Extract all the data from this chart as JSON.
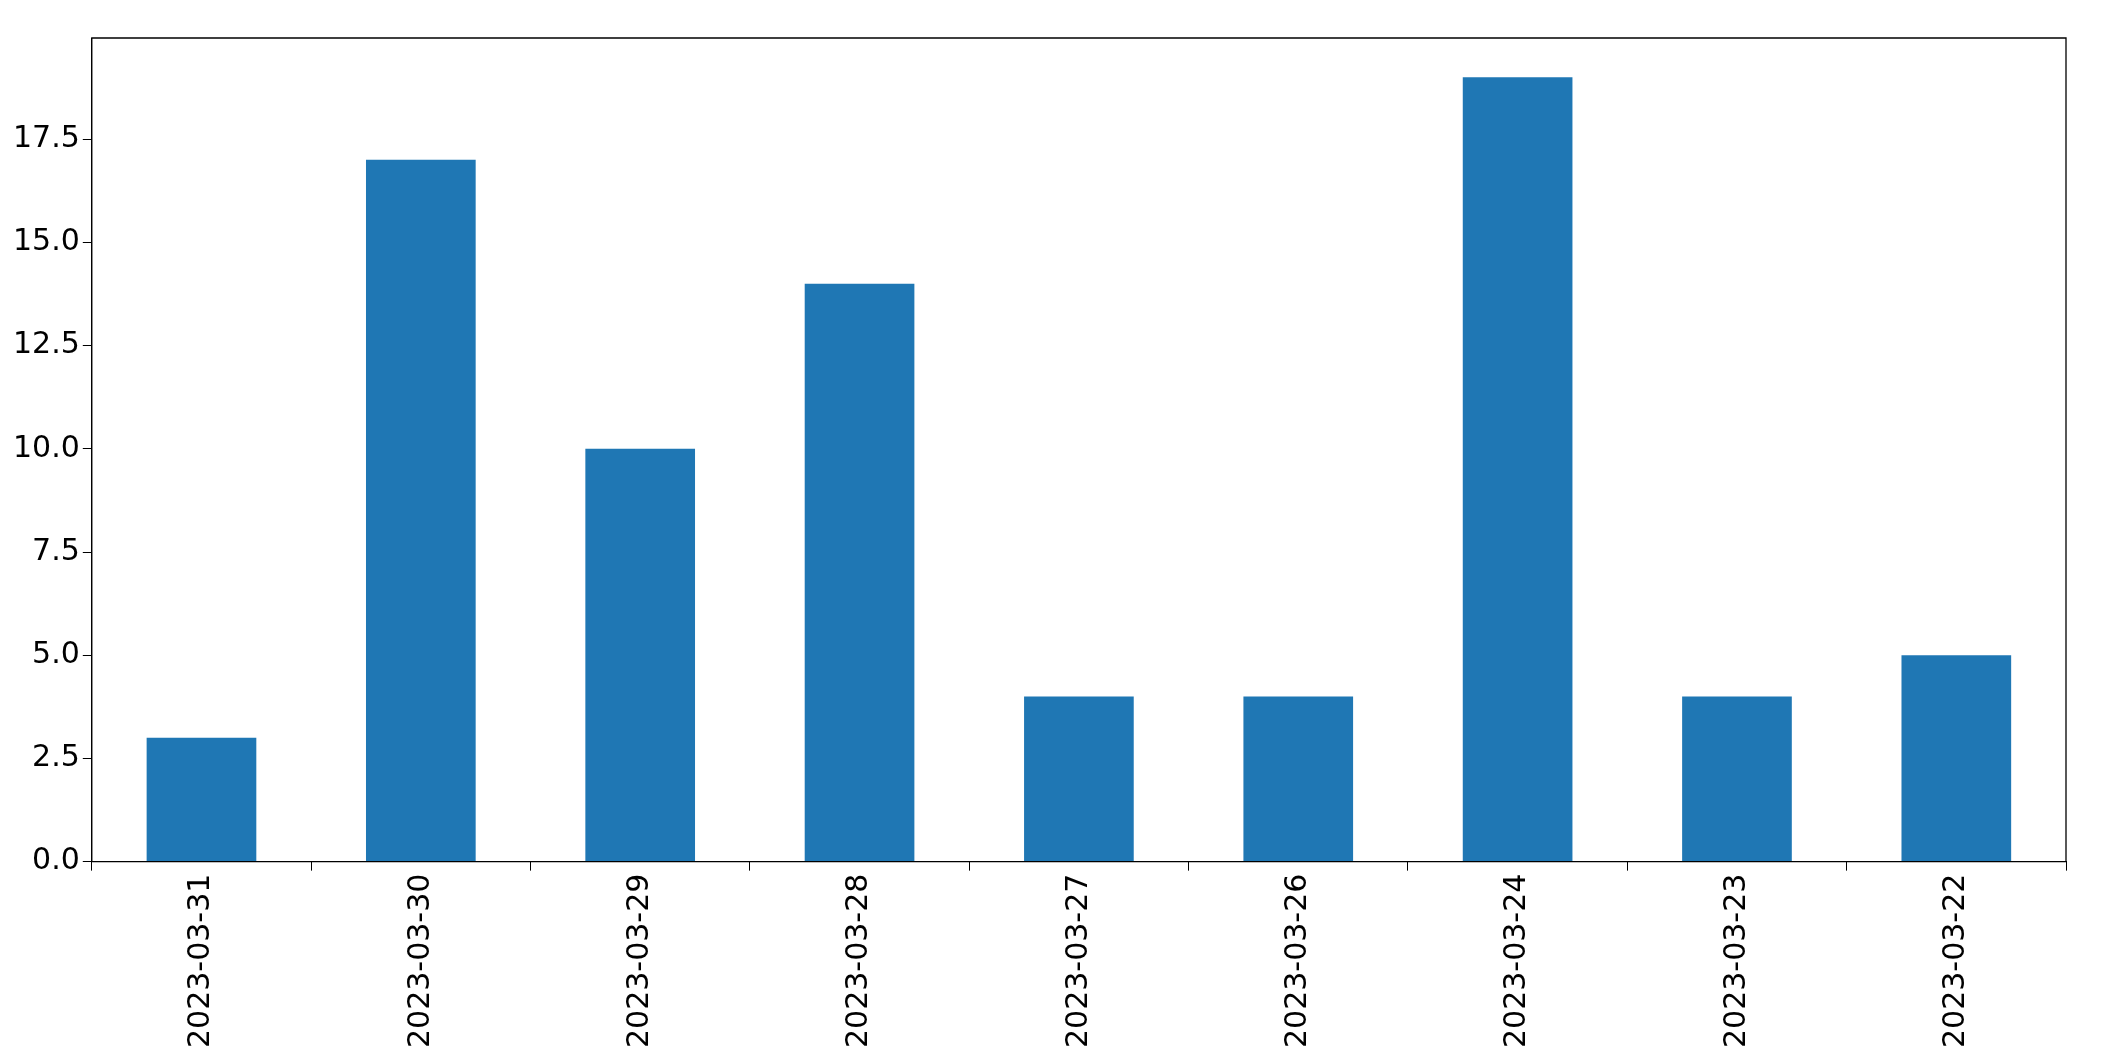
{
  "chart_data": {
    "type": "bar",
    "categories": [
      "2023-03-31",
      "2023-03-30",
      "2023-03-29",
      "2023-03-28",
      "2023-03-27",
      "2023-03-26",
      "2023-03-24",
      "2023-03-23",
      "2023-03-22"
    ],
    "values": [
      3,
      17,
      10,
      14,
      4,
      4,
      19,
      4,
      5
    ],
    "color": "#1f77b4",
    "ylim": [
      0,
      19.95
    ],
    "yticks": [
      {
        "value": 0,
        "label": "0.0"
      },
      {
        "value": 2.5,
        "label": "2.5"
      },
      {
        "value": 5,
        "label": "5.0"
      },
      {
        "value": 7.5,
        "label": "7.5"
      },
      {
        "value": 10,
        "label": "10.0"
      },
      {
        "value": 12.5,
        "label": "12.5"
      },
      {
        "value": 15,
        "label": "15.0"
      },
      {
        "value": 17.5,
        "label": "17.5"
      }
    ]
  }
}
